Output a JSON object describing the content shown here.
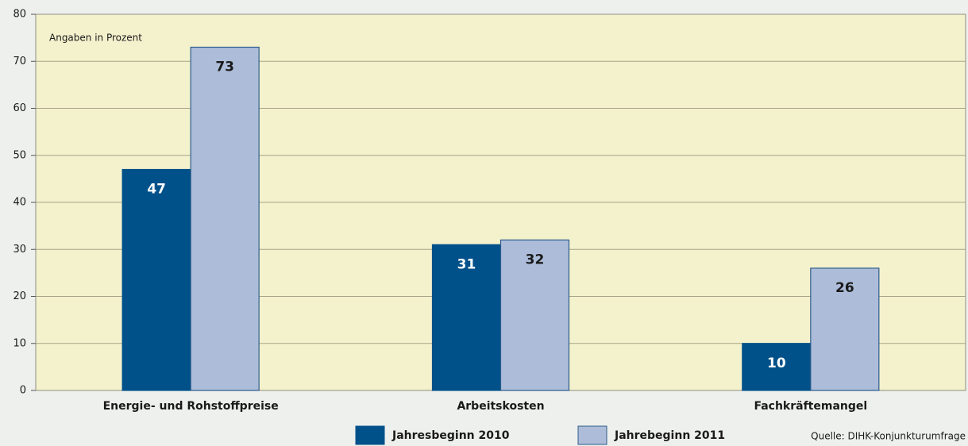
{
  "chart_data": {
    "type": "bar",
    "annotation": "Angaben in Prozent",
    "source": "Quelle: DIHK-Konjunkturumfrage",
    "categories": [
      "Energie- und Rohstoffpreise",
      "Arbeitskosten",
      "Fachkräftemangel"
    ],
    "series": [
      {
        "name": "Jahresbeginn 2010",
        "color": "#00508a",
        "values": [
          47,
          31,
          10
        ]
      },
      {
        "name": "Jahrebeginn 2011",
        "color": "#adbdd9",
        "values": [
          73,
          32,
          26
        ]
      }
    ],
    "ylim": [
      0,
      80
    ],
    "yticks": [
      0,
      10,
      20,
      30,
      40,
      50,
      60,
      70,
      80
    ],
    "grid": true
  }
}
